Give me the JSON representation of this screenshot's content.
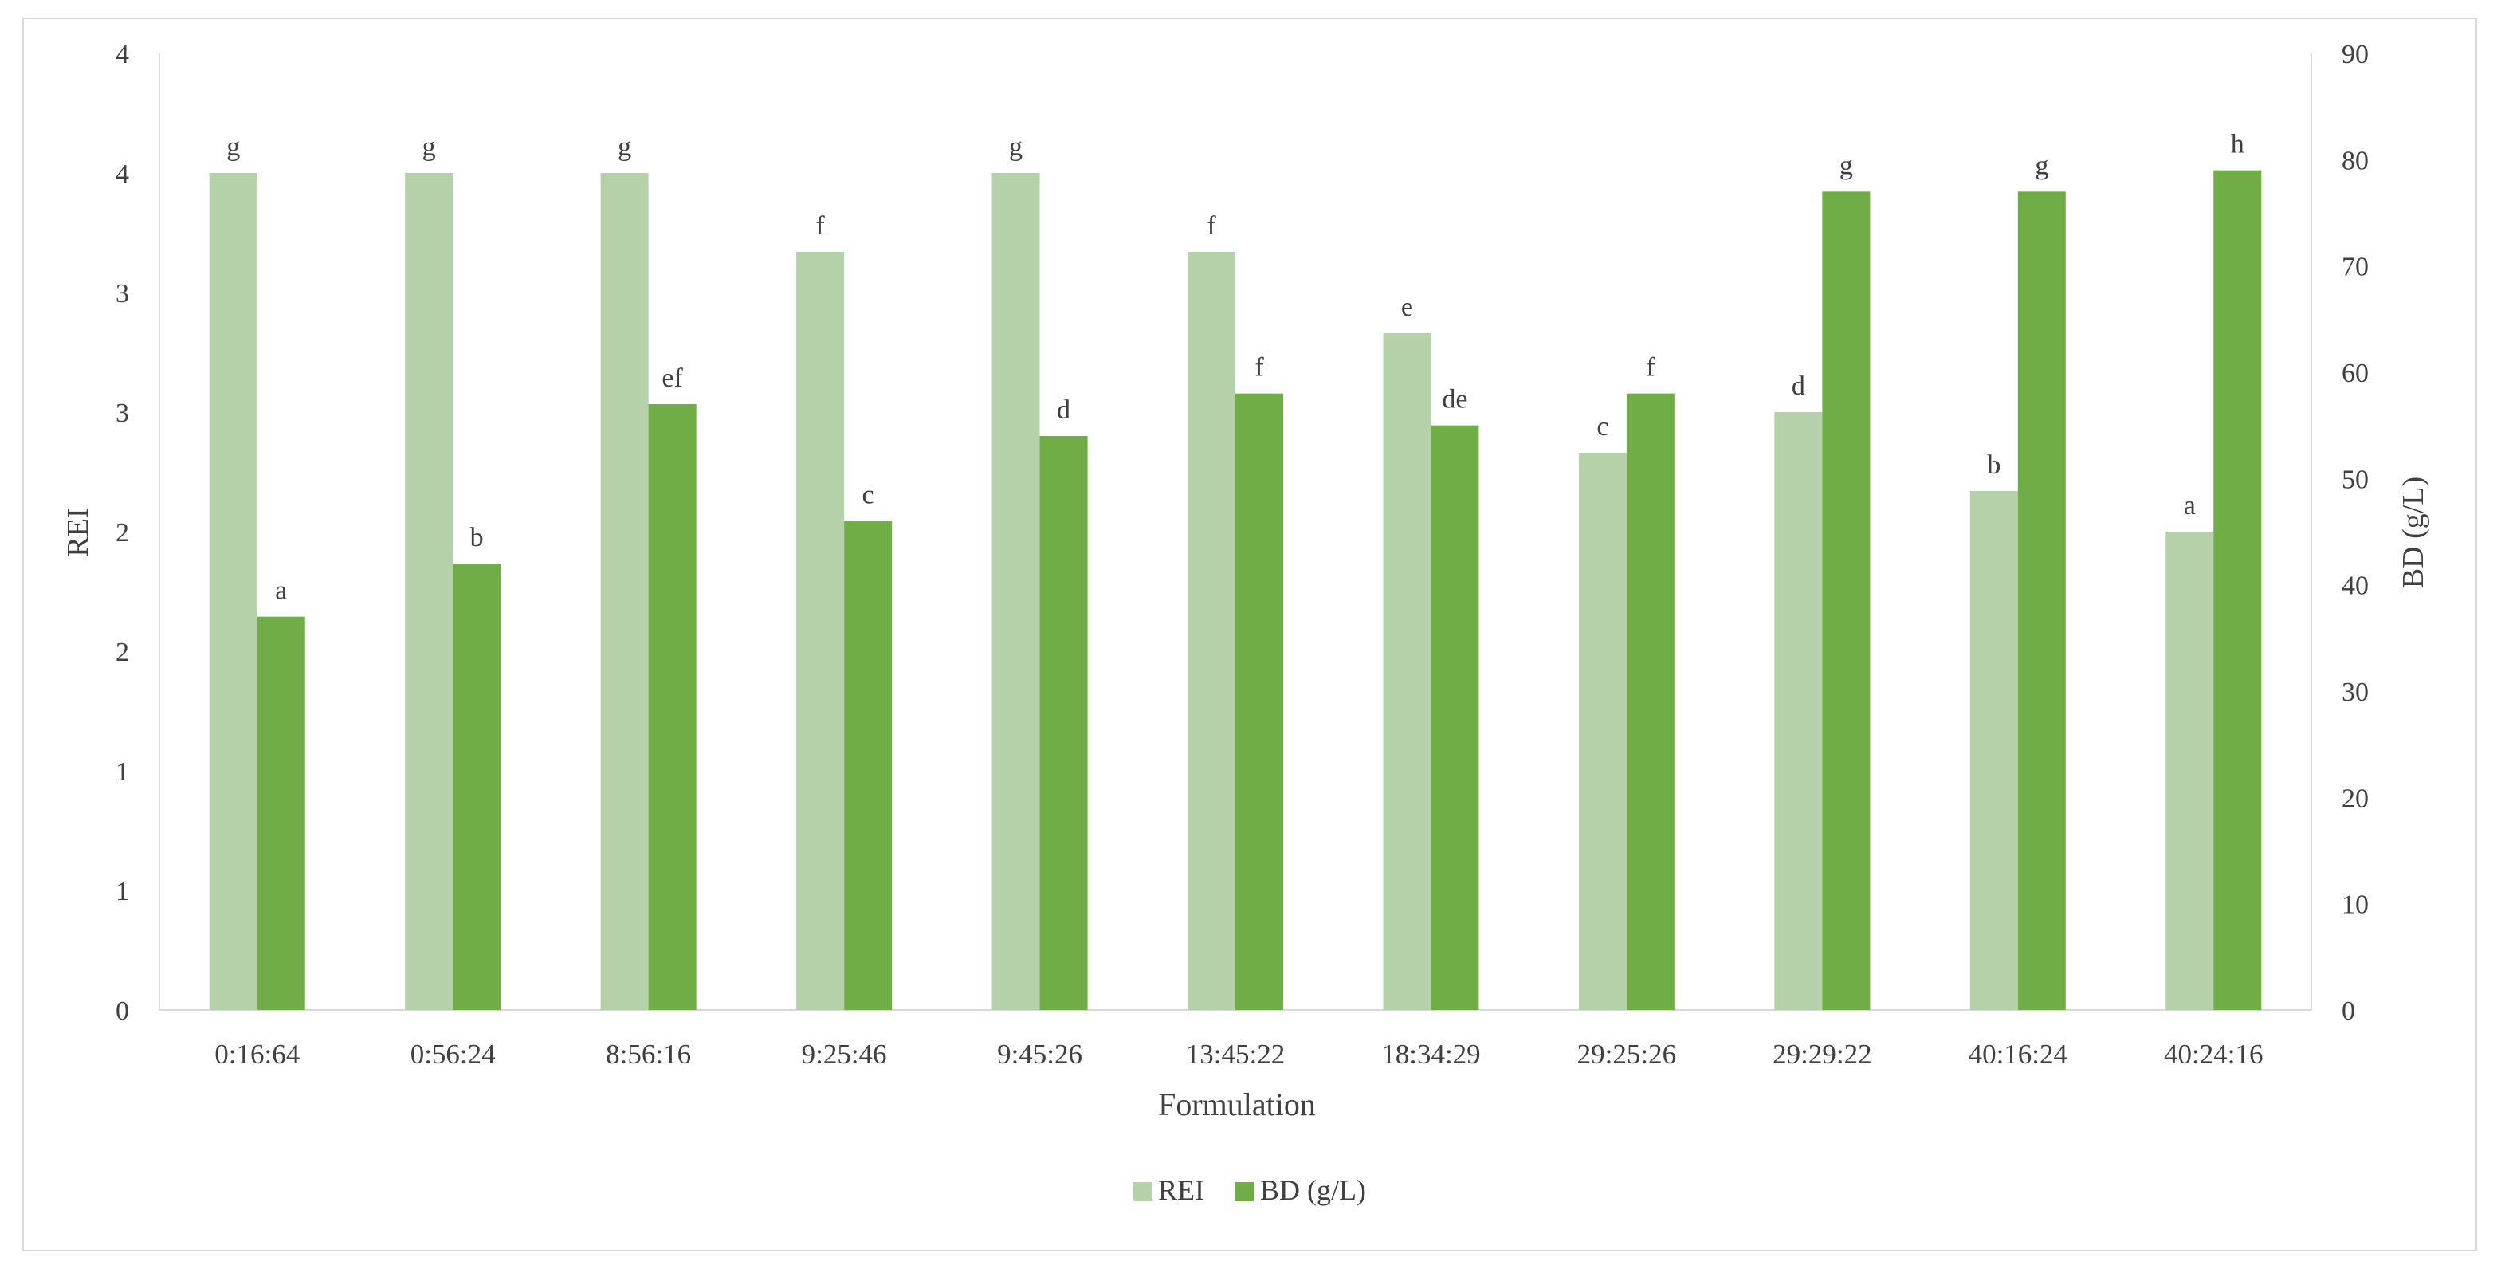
{
  "chart_data": {
    "type": "bar",
    "xlabel": "Formulation",
    "ylabel_left": "REI",
    "ylabel_right": "BD (g/L)",
    "categories": [
      "0:16:64",
      "0:56:24",
      "8:56:16",
      "9:25:46",
      "9:45:26",
      "13:45:22",
      "18:34:29",
      "29:25:26",
      "29:29:22",
      "40:16:24",
      "40:24:16"
    ],
    "left_axis": {
      "ylim": [
        0,
        4
      ],
      "tick_labels": [
        "0",
        "1",
        "1",
        "2",
        "2",
        "3",
        "3",
        "4",
        "4"
      ]
    },
    "right_axis": {
      "ylim": [
        0,
        90
      ],
      "ticks": [
        0,
        10,
        20,
        30,
        40,
        50,
        60,
        70,
        80,
        90
      ]
    },
    "series": [
      {
        "name": "REI",
        "axis": "left",
        "color": "#b5d1a9",
        "values": [
          3.5,
          3.5,
          3.5,
          3.17,
          3.5,
          3.17,
          2.83,
          2.33,
          2.5,
          2.17,
          2.0
        ],
        "labels": [
          "g",
          "g",
          "g",
          "f",
          "g",
          "f",
          "e",
          "c",
          "d",
          "b",
          "a"
        ]
      },
      {
        "name": "BD (g/L)",
        "axis": "right",
        "color": "#70ad47",
        "values": [
          37,
          42,
          57,
          46,
          54,
          58,
          55,
          58,
          77,
          77,
          79
        ],
        "labels": [
          "a",
          "b",
          "ef",
          "c",
          "d",
          "f",
          "de",
          "f",
          "g",
          "g",
          "h"
        ]
      }
    ],
    "legend_position": "bottom",
    "grid": false
  }
}
